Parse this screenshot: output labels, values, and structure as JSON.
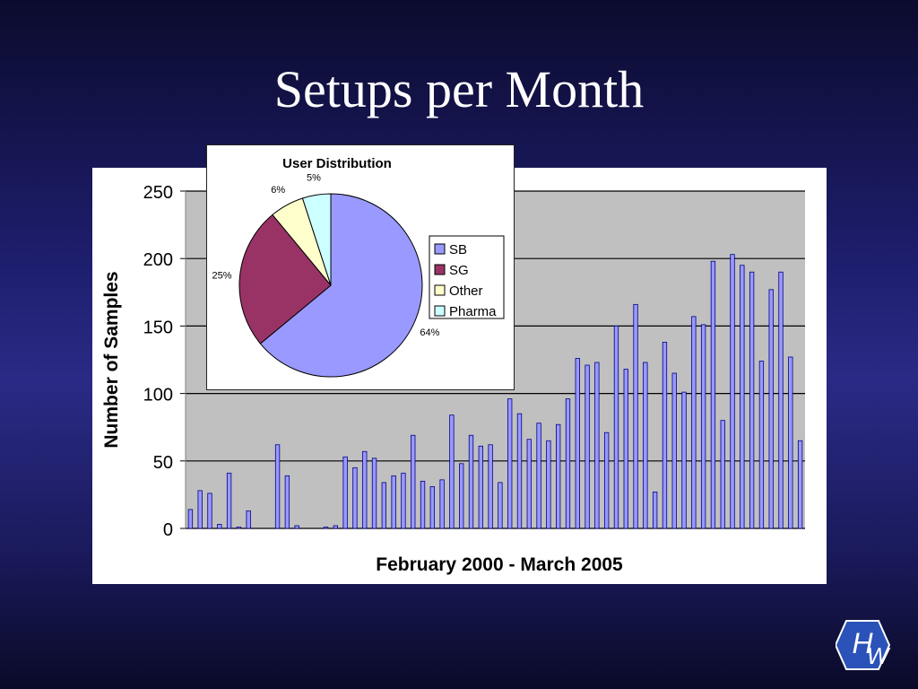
{
  "slide": {
    "title": "Setups per Month"
  },
  "chart_data": [
    {
      "type": "bar",
      "title": "",
      "xlabel": "February 2000 - March 2005",
      "ylabel": "Number of Samples",
      "ylim": [
        0,
        250
      ],
      "yticks": [
        "0",
        "50",
        "100",
        "150",
        "200",
        "250"
      ],
      "grid": true,
      "bar_color": "#9999ff",
      "plot_background": "#c0c0c0",
      "values": [
        14,
        28,
        26,
        3,
        41,
        1,
        13,
        0,
        0,
        62,
        39,
        2,
        0,
        0,
        1,
        2,
        53,
        45,
        57,
        52,
        34,
        39,
        41,
        69,
        35,
        31,
        36,
        84,
        48,
        69,
        61,
        62,
        34,
        96,
        85,
        66,
        78,
        65,
        77,
        96,
        126,
        121,
        123,
        71,
        150,
        118,
        166,
        123,
        27,
        138,
        115,
        101,
        157,
        151,
        198,
        80,
        203,
        195,
        190,
        124,
        177,
        190,
        127,
        65
      ]
    },
    {
      "type": "pie",
      "title": "User Distribution",
      "labels": [
        "SB",
        "SG",
        "Other",
        "Pharma"
      ],
      "values": [
        64,
        25,
        6,
        5
      ],
      "data_labels": [
        "64%",
        "25%",
        "6%",
        "5%"
      ],
      "colors": [
        "#9999ff",
        "#993366",
        "#ffffcc",
        "#ccffff"
      ],
      "legend": "right"
    }
  ],
  "logo": {
    "text_h": "H",
    "text_w": "W"
  }
}
